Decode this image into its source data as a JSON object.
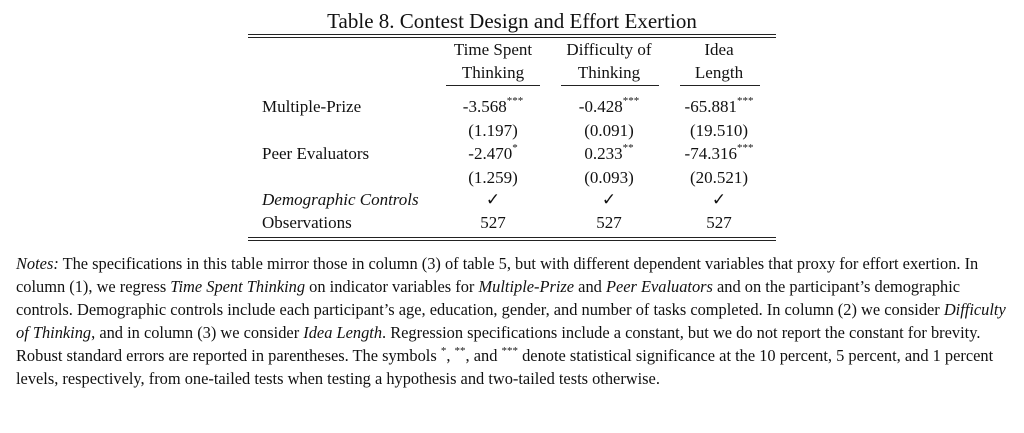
{
  "table": {
    "title": "Table 8. Contest Design and Effort Exertion",
    "columns": [
      {
        "line1": "Time Spent",
        "line2": "Thinking"
      },
      {
        "line1": "Difficulty of",
        "line2": "Thinking"
      },
      {
        "line1": "Idea",
        "line2": "Length"
      }
    ],
    "rows": [
      {
        "label": "Multiple-Prize",
        "coef": [
          {
            "v": "-3.568",
            "s": "***"
          },
          {
            "v": "-0.428",
            "s": "***"
          },
          {
            "v": "-65.881",
            "s": "***"
          }
        ],
        "se": [
          "(1.197)",
          "(0.091)",
          "(19.510)"
        ]
      },
      {
        "label": "Peer Evaluators",
        "coef": [
          {
            "v": "-2.470",
            "s": "*"
          },
          {
            "v": "0.233",
            "s": "**"
          },
          {
            "v": "-74.316",
            "s": "***"
          }
        ],
        "se": [
          "(1.259)",
          "(0.093)",
          "(20.521)"
        ]
      }
    ],
    "controls_label": "Demographic Controls",
    "controls_marks": [
      "✓",
      "✓",
      "✓"
    ],
    "observations_label": "Observations",
    "observations": [
      "527",
      "527",
      "527"
    ]
  },
  "notes": {
    "lead": "Notes:",
    "t1": " The specifications in this table mirror those in column (3) of table 5, but with different dependent variables that proxy for effort exertion. In column (1), we regress ",
    "i1": "Time Spent Thinking",
    "t2": " on indicator variables for ",
    "i2": "Multiple-Prize",
    "t3": " and ",
    "i3": "Peer Evaluators",
    "t4": " and on the participant’s demographic controls. Demographic controls include each participant’s age, education, gender, and number of tasks completed. In column (2) we consider ",
    "i4": "Difficulty of Thinking",
    "t5": ", and in column (3) we consider ",
    "i5": "Idea Length",
    "t6": ". Regression specifications include a constant, but we do not report the constant for brevity. Robust standard errors are reported in parentheses. The symbols ",
    "sym1": "*",
    "c1": ", ",
    "sym2": "**",
    "c2": ", and ",
    "sym3": "***",
    "t7": " denote statistical significance at the 10 percent, 5 percent, and 1 percent levels, respectively, from one-tailed tests when testing a hypothesis and two-tailed tests otherwise."
  }
}
